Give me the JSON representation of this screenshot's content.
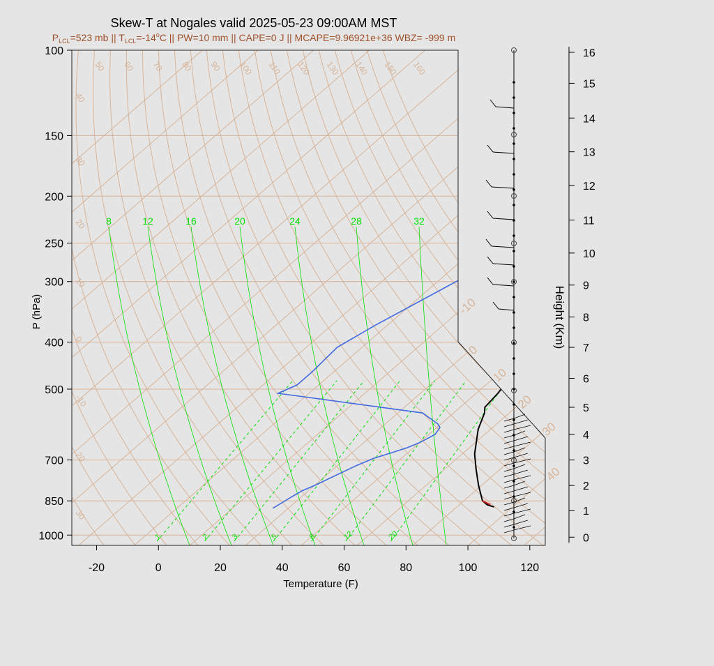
{
  "chart_data": {
    "type": "line",
    "title": "Skew-T at Nogales valid 2025-05-23 09:00AM MST",
    "subtitle": {
      "p_lcl_prefix": "P",
      "p_lcl_sub": "LCL",
      "p_lcl_value": "=523 mb || ",
      "t_lcl_prefix": "T",
      "t_lcl_sub": "LCL",
      "t_lcl_value": "=-14",
      "t_lcl_unit": "C || ",
      "rest": "PW=10 mm || CAPE=0 J || MCAPE=9.96921e+36 WBZ= -999 m"
    },
    "xlabel": "Temperature (F)",
    "ylabel": "P (hPa)",
    "y2label": "Height (Km)",
    "xlim": [
      -28,
      125
    ],
    "ylim": [
      1050,
      100
    ],
    "x_ticks": [
      "-20",
      "0",
      "20",
      "40",
      "60",
      "80",
      "100",
      "120"
    ],
    "x_tick_values": [
      -20,
      0,
      20,
      40,
      60,
      80,
      100,
      120
    ],
    "p_ticks": [
      "100",
      "150",
      "200",
      "250",
      "300",
      "400",
      "500",
      "700",
      "850",
      "1000"
    ],
    "p_tick_values": [
      100,
      150,
      200,
      250,
      300,
      400,
      500,
      700,
      850,
      1000
    ],
    "height_ticks": [
      "0",
      "1",
      "2",
      "3",
      "4",
      "5",
      "6",
      "7",
      "8",
      "9",
      "10",
      "11",
      "12",
      "13",
      "14",
      "15",
      "16"
    ],
    "height_tick_values": [
      0,
      1,
      2,
      3,
      4,
      5,
      6,
      7,
      8,
      9,
      10,
      11,
      12,
      13,
      14,
      15,
      16
    ],
    "height_p_map": {
      "h": [
        0,
        1,
        2,
        3,
        4,
        5,
        6,
        7,
        8,
        9,
        10,
        11,
        12,
        13,
        14,
        15,
        16
      ],
      "p": [
        1010,
        890,
        790,
        700,
        620,
        545,
        475,
        410,
        355,
        305,
        262,
        224,
        190,
        162,
        138,
        117,
        101
      ]
    },
    "isotherm_labels": [
      "-10",
      "0",
      "10",
      "20",
      "30",
      "40"
    ],
    "isotherm_label_values": [
      -10,
      0,
      10,
      20,
      30,
      40
    ],
    "dry_adiabat_labels_left": [
      "50",
      "60",
      "70",
      "80",
      "90",
      "100",
      "110",
      "120",
      "130",
      "140",
      "150",
      "160"
    ],
    "dry_adiabat_labels_side": [
      "40",
      "30",
      "20",
      "10",
      "0",
      "-10",
      "20",
      "30"
    ],
    "mixing_ratio_labels_top": [
      "8",
      "12",
      "16",
      "20",
      "24",
      "28",
      "32"
    ],
    "mixing_ratio_labels_bottom": [
      "1",
      "2",
      "3",
      "5",
      "8",
      "12",
      "20"
    ],
    "series": [
      {
        "name": "temperature",
        "color": "#000000",
        "x": [
          98,
          95,
          92,
          85,
          78,
          72,
          64,
          60,
          58,
          57,
          55,
          50,
          40,
          30,
          23,
          22,
          23,
          25,
          30,
          40
        ],
        "p": [
          875,
          866,
          850,
          790,
          730,
          680,
          605,
          560,
          545,
          510,
          470,
          420,
          340,
          260,
          200,
          185,
          165,
          145,
          130,
          100
        ]
      },
      {
        "name": "dewpoint",
        "color": "#4169e1",
        "x": [
          27,
          28,
          29,
          30,
          32,
          38,
          41,
          45,
          48,
          50,
          52,
          51,
          49,
          40,
          -14,
          -11,
          -11,
          -12,
          -8,
          2,
          13,
          16,
          17,
          9,
          23
        ],
        "p": [
          880,
          855,
          830,
          810,
          790,
          720,
          695,
          675,
          660,
          645,
          620,
          600,
          590,
          560,
          510,
          490,
          460,
          410,
          370,
          300,
          260,
          230,
          200,
          135,
          100
        ]
      }
    ],
    "colors": {
      "background": "#e5e5e5",
      "grid_isotherm": "#d7b499",
      "mixing_ratio": "#00e000",
      "axis": "#000000",
      "subtitle": "#a0522d"
    }
  }
}
